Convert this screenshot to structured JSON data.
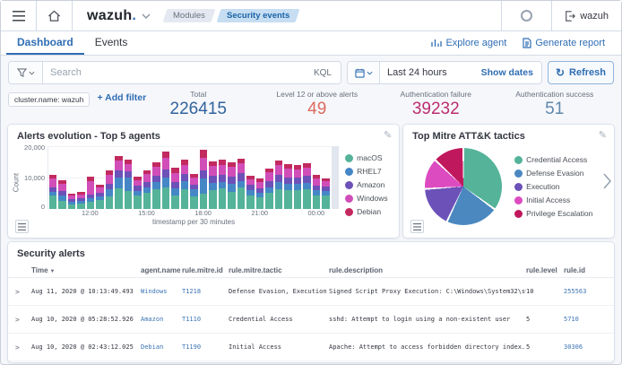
{
  "header": {
    "logo": "wazuh",
    "logo_dot": ".",
    "breadcrumbs": [
      "Modules",
      "Security events"
    ],
    "user_label": "wazuh"
  },
  "nav": {
    "tabs": [
      {
        "label": "Dashboard"
      },
      {
        "label": "Events"
      }
    ],
    "actions": [
      {
        "label": "Explore agent"
      },
      {
        "label": "Generate report"
      }
    ]
  },
  "search_bar": {
    "placeholder": "Search",
    "language": "KQL",
    "time_range": "Last 24 hours",
    "show_dates": "Show dates",
    "refresh_label": "Refresh"
  },
  "filter_bar": {
    "pill": "cluster.name: wazuh",
    "add_filter": "+ Add filter"
  },
  "stats": [
    {
      "label": "Total",
      "value": "226415",
      "color": "#31639c"
    },
    {
      "label": "Level 12 or above alerts",
      "value": "49",
      "color": "#dd6a5f"
    },
    {
      "label": "Authentication failure",
      "value": "39232",
      "color": "#bb2e6f"
    },
    {
      "label": "Authentication success",
      "value": "51",
      "color": "#5f87ab"
    }
  ],
  "chart_data": [
    {
      "type": "bar",
      "stacked": true,
      "title": "Alerts evolution - Top 5 agents",
      "xlabel": "timestamp per 30 minutes",
      "ylabel": "Count",
      "ylim": [
        0,
        20000
      ],
      "ytick_labels": [
        "20,000",
        "10,000",
        "0"
      ],
      "legend_position": "right",
      "categories": [
        "10:00",
        "10:30",
        "11:00",
        "11:30",
        "12:00",
        "12:30",
        "13:00",
        "13:30",
        "14:00",
        "14:30",
        "15:00",
        "15:30",
        "16:00",
        "16:30",
        "17:00",
        "17:30",
        "18:00",
        "18:30",
        "19:00",
        "19:30",
        "20:00",
        "20:30",
        "21:00",
        "21:30",
        "22:00",
        "22:30",
        "23:00",
        "23:30",
        "00:00",
        "00:30"
      ],
      "tick_indices": [
        4,
        10,
        16,
        22,
        28
      ],
      "series": [
        {
          "name": "macOS",
          "color": "#54b399",
          "values": [
            4200,
            2600,
            1500,
            1700,
            2300,
            3000,
            4100,
            6700,
            5600,
            4400,
            5200,
            6400,
            6900,
            4200,
            6300,
            4100,
            4900,
            6100,
            6700,
            5500,
            6800,
            4400,
            3700,
            5200,
            6400,
            6100,
            6000,
            6200,
            4300,
            4200
          ]
        },
        {
          "name": "RHEL7",
          "color": "#4587c6",
          "values": [
            1100,
            1600,
            700,
            800,
            1000,
            1100,
            2200,
            3300,
            4400,
            1400,
            1600,
            2100,
            3200,
            2300,
            2700,
            2100,
            4800,
            2300,
            2000,
            2600,
            2200,
            1700,
            1500,
            1800,
            2300,
            2000,
            2100,
            2200,
            1600,
            1500
          ]
        },
        {
          "name": "Amazon",
          "color": "#6c51b8",
          "values": [
            1700,
            1400,
            900,
            900,
            1200,
            1100,
            1700,
            2200,
            1900,
            1500,
            1800,
            2000,
            2400,
            2200,
            2100,
            1600,
            2600,
            2200,
            2100,
            2300,
            2400,
            1500,
            1400,
            1900,
            2200,
            2000,
            2000,
            2100,
            1600,
            1400
          ]
        },
        {
          "name": "Windows",
          "color": "#d14db8",
          "values": [
            2800,
            2400,
            1200,
            1300,
            4300,
            1600,
            2800,
            3100,
            2500,
            1900,
            2600,
            2800,
            3800,
            2800,
            3000,
            2200,
            4100,
            3000,
            3200,
            2900,
            3100,
            1900,
            2000,
            2700,
            3100,
            2700,
            2600,
            2700,
            2200,
            1700
          ]
        },
        {
          "name": "Debian",
          "color": "#c2295f",
          "values": [
            1200,
            1200,
            700,
            600,
            1600,
            900,
            1500,
            1500,
            1400,
            1100,
            1200,
            1500,
            2000,
            1600,
            1500,
            1200,
            2600,
            1600,
            1600,
            1600,
            1500,
            1000,
            1100,
            1300,
            1500,
            1400,
            1400,
            1300,
            1300,
            900
          ]
        }
      ]
    },
    {
      "type": "pie",
      "title": "Top Mitre ATT&K tactics",
      "legend_position": "right",
      "slices": [
        {
          "label": "Credential Access",
          "value": 35,
          "color": "#54b399"
        },
        {
          "label": "Defense Evasion",
          "value": 22,
          "color": "#4b88c0"
        },
        {
          "label": "Execution",
          "value": 17,
          "color": "#6c51b8"
        },
        {
          "label": "Initial Access",
          "value": 13,
          "color": "#dd4bc0"
        },
        {
          "label": "Privilege Escalation",
          "value": 13,
          "color": "#c0185c"
        }
      ]
    }
  ],
  "alerts_table": {
    "title": "Security alerts",
    "columns": [
      "Time",
      "agent.name",
      "rule.mitre.id",
      "rule.mitre.tactic",
      "rule.description",
      "rule.level",
      "rule.id"
    ],
    "rows": [
      {
        "time": "Aug 11, 2020 @ 10:13:49.493",
        "agent": "Windows",
        "mitre_id": "T1218",
        "tactic": "Defense Evasion, Execution",
        "description": "Signed Script Proxy Execution: C:\\Windows\\System32\\svchost.exe",
        "level": "10",
        "rule_id": "255563"
      },
      {
        "time": "Aug 10, 2020 @ 05:28:52.926",
        "agent": "Amazon",
        "mitre_id": "T1110",
        "tactic": "Credential Access",
        "description": "sshd: Attempt to login using a non-existent user",
        "level": "5",
        "rule_id": "5710"
      },
      {
        "time": "Aug 10, 2020 @ 02:43:12.025",
        "agent": "Debian",
        "mitre_id": "T1190",
        "tactic": "Initial Access",
        "description": "Apache: Attempt to access forbidden directory index.",
        "level": "5",
        "rule_id": "30306"
      }
    ]
  }
}
